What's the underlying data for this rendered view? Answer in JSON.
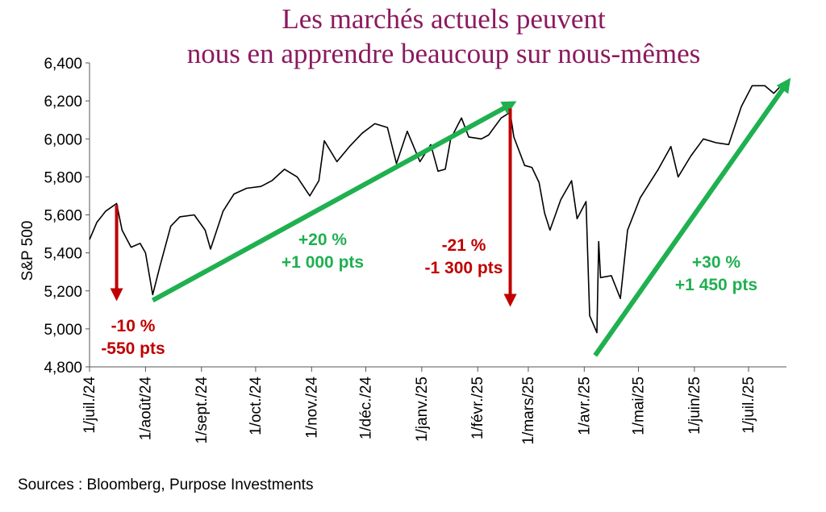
{
  "title": {
    "line1": "Les marchés actuels peuvent",
    "line2": "nous en apprendre beaucoup sur nous-mêmes"
  },
  "source": "Sources : Bloomberg, Purpose Investments",
  "colors": {
    "title": "#8b1a5e",
    "up": "#1fb050",
    "down": "#c00000",
    "price": "#000000"
  },
  "chart_data": {
    "type": "line",
    "ylabel": "S&P 500",
    "ylim": [
      4800,
      6400
    ],
    "yticks": [
      "6,400",
      "6,200",
      "6,000",
      "5,800",
      "5,600",
      "5,400",
      "5,200",
      "5,000",
      "4,800"
    ],
    "xlim": [
      "2024-07-01",
      "2025-07-22"
    ],
    "xticks": [
      {
        "date": "2024-07-01",
        "label": "1/juil./24"
      },
      {
        "date": "2024-08-01",
        "label": "1/août/24"
      },
      {
        "date": "2024-09-01",
        "label": "1/sept./24"
      },
      {
        "date": "2024-10-01",
        "label": "1/oct./24"
      },
      {
        "date": "2024-11-01",
        "label": "1/nov./24"
      },
      {
        "date": "2024-12-01",
        "label": "1/déc./24"
      },
      {
        "date": "2025-01-01",
        "label": "1/janv./25"
      },
      {
        "date": "2025-02-01",
        "label": "1/févr./25"
      },
      {
        "date": "2025-03-01",
        "label": "1/mars/25"
      },
      {
        "date": "2025-04-01",
        "label": "1/avr./25"
      },
      {
        "date": "2025-05-01",
        "label": "1/mai/25"
      },
      {
        "date": "2025-06-01",
        "label": "1/juin/25"
      },
      {
        "date": "2025-07-01",
        "label": "1/juil./25"
      }
    ],
    "series": [
      {
        "values": [
          [
            "2024-07-01",
            5470
          ],
          [
            "2024-07-05",
            5560
          ],
          [
            "2024-07-10",
            5620
          ],
          [
            "2024-07-16",
            5660
          ],
          [
            "2024-07-19",
            5520
          ],
          [
            "2024-07-24",
            5430
          ],
          [
            "2024-07-29",
            5450
          ],
          [
            "2024-08-01",
            5400
          ],
          [
            "2024-08-05",
            5180
          ],
          [
            "2024-08-09",
            5330
          ],
          [
            "2024-08-15",
            5540
          ],
          [
            "2024-08-20",
            5590
          ],
          [
            "2024-08-28",
            5600
          ],
          [
            "2024-09-03",
            5520
          ],
          [
            "2024-09-06",
            5420
          ],
          [
            "2024-09-13",
            5620
          ],
          [
            "2024-09-19",
            5710
          ],
          [
            "2024-09-26",
            5740
          ],
          [
            "2024-10-04",
            5750
          ],
          [
            "2024-10-10",
            5780
          ],
          [
            "2024-10-17",
            5840
          ],
          [
            "2024-10-24",
            5800
          ],
          [
            "2024-10-31",
            5700
          ],
          [
            "2024-11-05",
            5780
          ],
          [
            "2024-11-08",
            5990
          ],
          [
            "2024-11-15",
            5880
          ],
          [
            "2024-11-22",
            5960
          ],
          [
            "2024-11-29",
            6030
          ],
          [
            "2024-12-06",
            6080
          ],
          [
            "2024-12-13",
            6060
          ],
          [
            "2024-12-18",
            5870
          ],
          [
            "2024-12-24",
            6040
          ],
          [
            "2024-12-31",
            5880
          ],
          [
            "2025-01-06",
            5970
          ],
          [
            "2025-01-10",
            5830
          ],
          [
            "2025-01-14",
            5840
          ],
          [
            "2025-01-17",
            6000
          ],
          [
            "2025-01-23",
            6110
          ],
          [
            "2025-01-27",
            6010
          ],
          [
            "2025-02-03",
            6000
          ],
          [
            "2025-02-07",
            6020
          ],
          [
            "2025-02-14",
            6110
          ],
          [
            "2025-02-19",
            6140
          ],
          [
            "2025-02-21",
            6010
          ],
          [
            "2025-02-27",
            5860
          ],
          [
            "2025-03-03",
            5850
          ],
          [
            "2025-03-07",
            5770
          ],
          [
            "2025-03-10",
            5610
          ],
          [
            "2025-03-13",
            5520
          ],
          [
            "2025-03-19",
            5680
          ],
          [
            "2025-03-25",
            5780
          ],
          [
            "2025-03-28",
            5580
          ],
          [
            "2025-04-02",
            5670
          ],
          [
            "2025-04-04",
            5070
          ],
          [
            "2025-04-08",
            4980
          ],
          [
            "2025-04-09",
            5460
          ],
          [
            "2025-04-10",
            5270
          ],
          [
            "2025-04-16",
            5280
          ],
          [
            "2025-04-21",
            5160
          ],
          [
            "2025-04-25",
            5520
          ],
          [
            "2025-05-02",
            5690
          ],
          [
            "2025-05-12",
            5840
          ],
          [
            "2025-05-19",
            5960
          ],
          [
            "2025-05-23",
            5800
          ],
          [
            "2025-05-30",
            5910
          ],
          [
            "2025-06-06",
            6000
          ],
          [
            "2025-06-13",
            5980
          ],
          [
            "2025-06-20",
            5970
          ],
          [
            "2025-06-27",
            6170
          ],
          [
            "2025-07-03",
            6280
          ],
          [
            "2025-07-10",
            6280
          ],
          [
            "2025-07-15",
            6240
          ],
          [
            "2025-07-21",
            6300
          ]
        ]
      }
    ],
    "annotations": [
      {
        "kind": "down",
        "x": "2024-07-16",
        "y_start": 5650,
        "y_end": 5180,
        "text": [
          "-10 %",
          "-550 pts"
        ]
      },
      {
        "kind": "up",
        "x_start": "2024-08-05",
        "y_start": 5150,
        "x_end": "2025-02-19",
        "y_end": 6180,
        "text": [
          "+20 %",
          "+1 000 pts"
        ]
      },
      {
        "kind": "down",
        "x": "2025-02-19",
        "y_start": 6160,
        "y_end": 5150,
        "text": [
          "-21 %",
          "-1 300 pts"
        ]
      },
      {
        "kind": "up",
        "x_start": "2025-04-07",
        "y_start": 4860,
        "x_end": "2025-07-22",
        "y_end": 6290,
        "text": [
          "+30 %",
          "+1 450 pts"
        ]
      }
    ],
    "grid": false
  }
}
